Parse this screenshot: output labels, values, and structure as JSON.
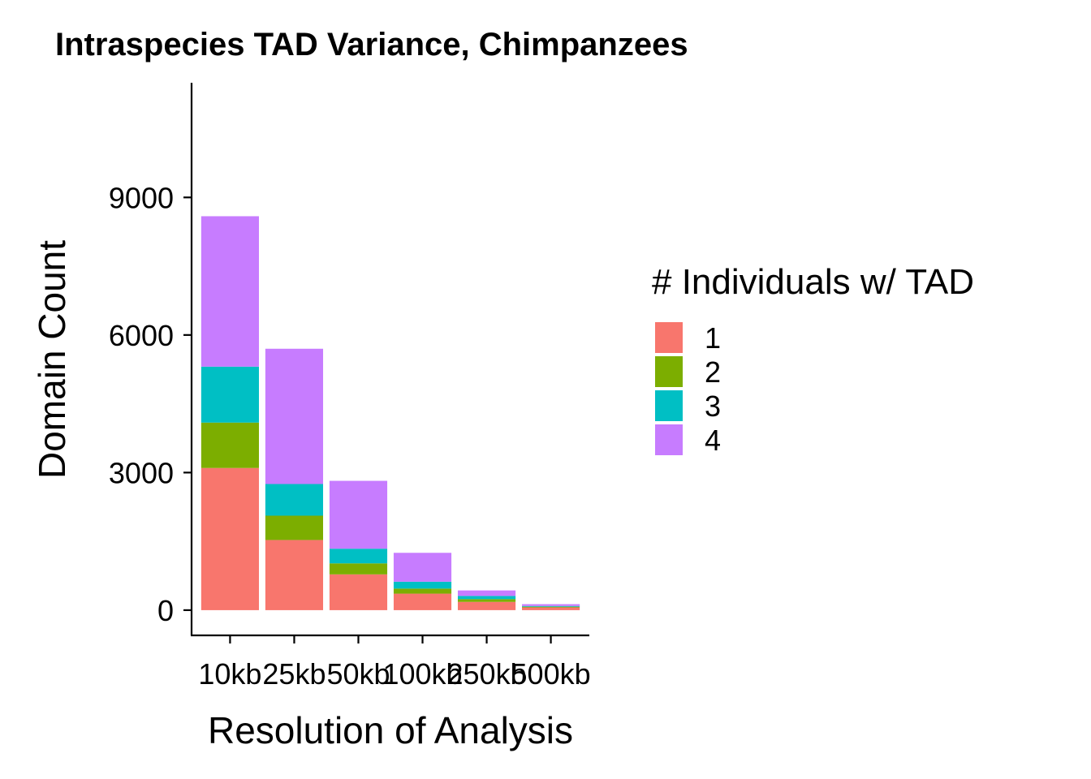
{
  "chart_data": {
    "type": "bar",
    "stacked": true,
    "title": "Intraspecies TAD Variance, Chimpanzees",
    "xlabel": "Resolution of Analysis",
    "ylabel": "Domain Count",
    "categories": [
      "10kb",
      "25kb",
      "50kb",
      "100kb",
      "250kb",
      "500kb"
    ],
    "ylim": [
      -550,
      11500
    ],
    "yticks": [
      0,
      3000,
      6000,
      9000
    ],
    "ytick_labels": [
      "0",
      "3000",
      "6000",
      "9000"
    ],
    "grid": false,
    "legend": {
      "title": "# Individuals w/ TAD",
      "placement": "right"
    },
    "series": [
      {
        "name": "1",
        "color": "#F8766D",
        "values": [
          3100,
          1530,
          780,
          360,
          180,
          60
        ]
      },
      {
        "name": "2",
        "color": "#7CAE00",
        "values": [
          990,
          530,
          240,
          110,
          60,
          15
        ]
      },
      {
        "name": "3",
        "color": "#00BFC4",
        "values": [
          1220,
          690,
          320,
          150,
          70,
          15
        ]
      },
      {
        "name": "4",
        "color": "#C77CFF",
        "values": [
          3280,
          2950,
          1480,
          630,
          120,
          40
        ]
      }
    ]
  }
}
